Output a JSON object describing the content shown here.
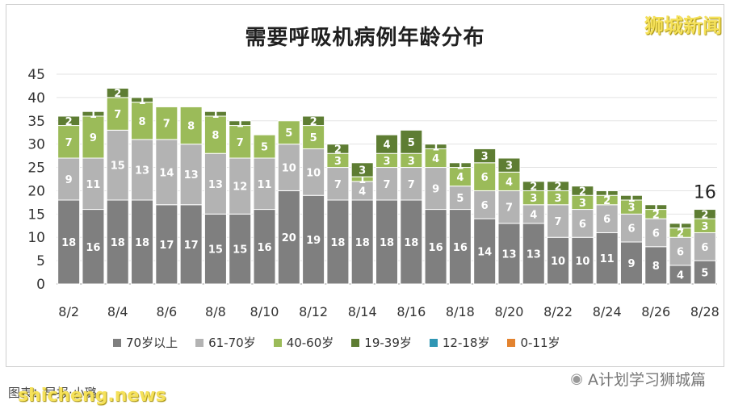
{
  "title": "需要呼吸机病例年龄分布",
  "brand_top": "狮城新闻",
  "credit": "图表：早报·小璐",
  "brand_bottom": "shicheng.news",
  "wechat_label": "A计划学习狮城篇",
  "chart_data": {
    "type": "bar",
    "stacked": true,
    "title": "需要呼吸机病例年龄分布",
    "categories": [
      "8/2",
      "8/3",
      "8/4",
      "8/5",
      "8/6",
      "8/7",
      "8/8",
      "8/9",
      "8/10",
      "8/11",
      "8/12",
      "8/13",
      "8/14",
      "8/15",
      "8/16",
      "8/17",
      "8/18",
      "8/19",
      "8/20",
      "8/21",
      "8/22",
      "8/23",
      "8/24",
      "8/25",
      "8/26",
      "8/27",
      "8/28"
    ],
    "xtick_labels": [
      "8/2",
      "",
      "8/4",
      "",
      "8/6",
      "",
      "8/8",
      "",
      "8/10",
      "",
      "8/12",
      "",
      "8/14",
      "",
      "8/16",
      "",
      "8/18",
      "",
      "8/20",
      "",
      "8/22",
      "",
      "8/24",
      "",
      "8/26",
      "",
      "8/28"
    ],
    "series": [
      {
        "name": "70岁以上",
        "color": "#7f7f7f",
        "values": [
          18,
          16,
          18,
          18,
          17,
          17,
          15,
          15,
          16,
          20,
          19,
          18,
          18,
          18,
          18,
          16,
          16,
          14,
          13,
          13,
          10,
          10,
          11,
          9,
          8,
          4,
          5
        ]
      },
      {
        "name": "61-70岁",
        "color": "#b3b3b3",
        "values": [
          9,
          11,
          15,
          13,
          14,
          13,
          13,
          12,
          11,
          10,
          10,
          7,
          4,
          7,
          7,
          9,
          5,
          6,
          7,
          4,
          7,
          6,
          6,
          6,
          6,
          6,
          6
        ]
      },
      {
        "name": "40-60岁",
        "color": "#9bbb59",
        "values": [
          7,
          9,
          7,
          8,
          7,
          8,
          8,
          7,
          5,
          5,
          5,
          3,
          1,
          3,
          3,
          4,
          4,
          6,
          4,
          3,
          3,
          3,
          2,
          3,
          2,
          2,
          3
        ]
      },
      {
        "name": "19-39岁",
        "color": "#5e7d33",
        "values": [
          2,
          1,
          2,
          1,
          0,
          0,
          1,
          1,
          0,
          0,
          2,
          2,
          3,
          4,
          5,
          1,
          1,
          3,
          3,
          2,
          2,
          2,
          1,
          1,
          1,
          1,
          2
        ]
      },
      {
        "name": "12-18岁",
        "color": "#2f96b4",
        "values": [
          0,
          0,
          0,
          0,
          0,
          0,
          0,
          0,
          0,
          0,
          0,
          0,
          0,
          0,
          0,
          0,
          0,
          0,
          0,
          0,
          0,
          0,
          0,
          0,
          0,
          0,
          0
        ]
      },
      {
        "name": "0-11岁",
        "color": "#e3832f",
        "values": [
          0,
          0,
          0,
          0,
          0,
          0,
          0,
          0,
          0,
          0,
          0,
          0,
          0,
          0,
          0,
          0,
          0,
          0,
          0,
          0,
          0,
          0,
          0,
          0,
          0,
          0,
          0
        ]
      }
    ],
    "ylim": [
      0,
      45
    ],
    "yticks": [
      0,
      5,
      10,
      15,
      20,
      25,
      30,
      35,
      40,
      45
    ],
    "annotation": {
      "category": "8/28",
      "text": "16"
    },
    "grid": true,
    "legend_position": "bottom"
  }
}
